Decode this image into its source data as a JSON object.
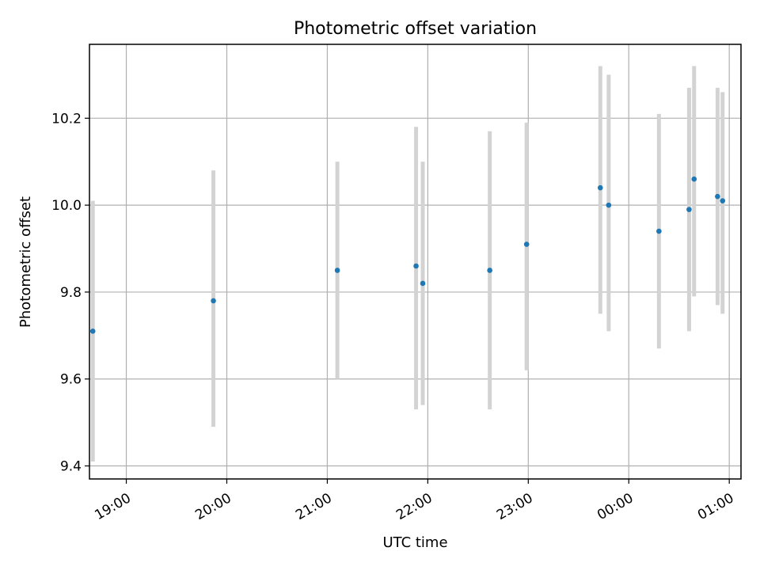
{
  "chart_data": {
    "type": "scatter",
    "title": "Photometric offset variation",
    "xlabel": "UTC time",
    "ylabel": "Photometric offset",
    "x_unit": "UTC time (HH:MM), second date from 00:00 on the following day",
    "xlim": [
      "18:38",
      "01:07"
    ],
    "ylim": [
      9.37,
      10.37
    ],
    "grid": true,
    "x_ticks": [
      "19:00",
      "20:00",
      "21:00",
      "22:00",
      "23:00",
      "00:00",
      "01:00"
    ],
    "y_ticks": [
      "9.4",
      "9.6",
      "9.8",
      "10.0",
      "10.2"
    ],
    "points": [
      {
        "x": "18:40",
        "y": 9.71,
        "err_low": 9.41,
        "err_high": 10.01
      },
      {
        "x": "19:52",
        "y": 9.78,
        "err_low": 9.49,
        "err_high": 10.08
      },
      {
        "x": "21:06",
        "y": 9.85,
        "err_low": 9.6,
        "err_high": 10.1
      },
      {
        "x": "21:53",
        "y": 9.86,
        "err_low": 9.53,
        "err_high": 10.18
      },
      {
        "x": "21:57",
        "y": 9.82,
        "err_low": 9.54,
        "err_high": 10.1
      },
      {
        "x": "22:37",
        "y": 9.85,
        "err_low": 9.53,
        "err_high": 10.17
      },
      {
        "x": "22:59",
        "y": 9.91,
        "err_low": 9.62,
        "err_high": 10.19
      },
      {
        "x": "23:43",
        "y": 10.04,
        "err_low": 9.75,
        "err_high": 10.32
      },
      {
        "x": "23:48",
        "y": 10.0,
        "err_low": 9.71,
        "err_high": 10.3
      },
      {
        "x": "00:18",
        "y": 9.94,
        "err_low": 9.67,
        "err_high": 10.21
      },
      {
        "x": "00:36",
        "y": 9.99,
        "err_low": 9.71,
        "err_high": 10.27
      },
      {
        "x": "00:39",
        "y": 10.06,
        "err_low": 9.79,
        "err_high": 10.32
      },
      {
        "x": "00:53",
        "y": 10.02,
        "err_low": 9.77,
        "err_high": 10.27
      },
      {
        "x": "00:56",
        "y": 10.01,
        "err_low": 9.75,
        "err_high": 10.26
      }
    ],
    "colors": {
      "marker": "#1f77b4",
      "errorbar": "#d3d3d3",
      "grid": "#b0b0b0"
    }
  }
}
